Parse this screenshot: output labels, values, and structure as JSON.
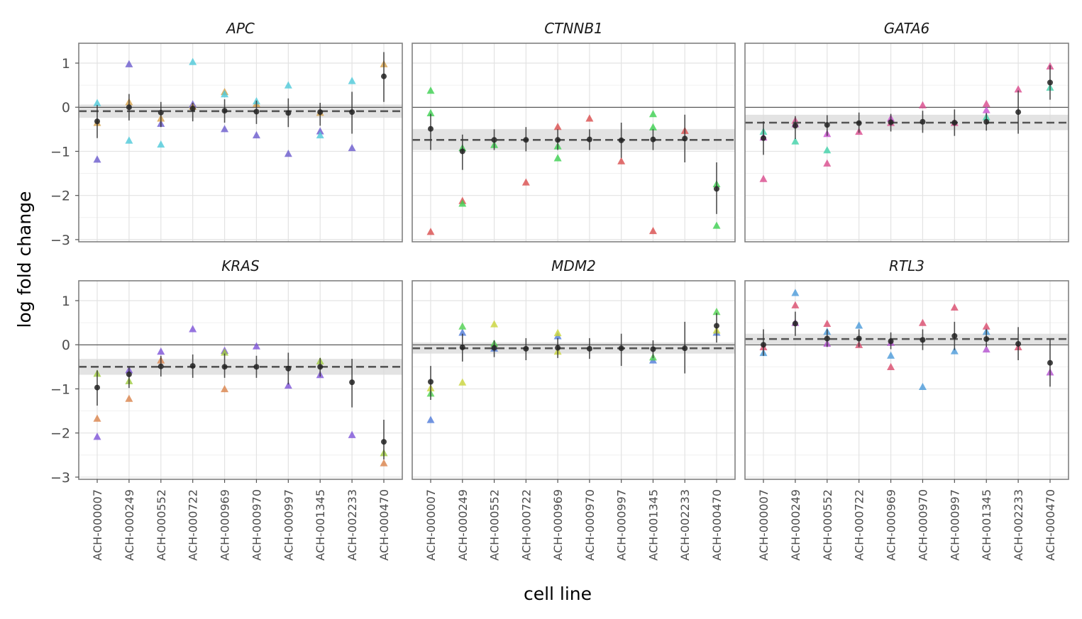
{
  "chart_data": {
    "type": "scatter",
    "xlabel": "cell line",
    "ylabel": "log fold change",
    "ylim": [
      -3.05,
      1.45
    ],
    "yticks": [
      1,
      0,
      -1,
      -2,
      -3
    ],
    "yticklabels": [
      "1",
      "0",
      "−1",
      "−2",
      "−3"
    ],
    "x": [
      "ACH-000007",
      "ACH-000249",
      "ACH-000552",
      "ACH-000722",
      "ACH-000969",
      "ACH-000970",
      "ACH-000997",
      "ACH-001345",
      "ACH-002233",
      "ACH-000470"
    ],
    "grid": true,
    "facets": [
      {
        "title": "APC",
        "colors": [
          "#6a5acd",
          "#d4a04a",
          "#4ec9d9"
        ],
        "mean": -0.09,
        "band": [
          -0.24,
          0.06
        ],
        "summary": [
          {
            "y": -0.32,
            "lo": -0.7,
            "hi": 0.05
          },
          {
            "y": 0.0,
            "lo": -0.3,
            "hi": 0.3
          },
          {
            "y": -0.12,
            "lo": -0.45,
            "hi": 0.12
          },
          {
            "y": -0.03,
            "lo": -0.32,
            "hi": 0.1
          },
          {
            "y": -0.08,
            "lo": -0.35,
            "hi": 0.18
          },
          {
            "y": -0.1,
            "lo": -0.38,
            "hi": 0.15
          },
          {
            "y": -0.13,
            "lo": -0.45,
            "hi": 0.2
          },
          {
            "y": -0.11,
            "lo": -0.42,
            "hi": 0.1
          },
          {
            "y": -0.11,
            "lo": -0.6,
            "hi": 0.35
          },
          {
            "y": 0.7,
            "lo": 0.12,
            "hi": 1.25
          }
        ],
        "points": [
          {
            "x": 0,
            "y": -1.18,
            "c": 0
          },
          {
            "x": 0,
            "y": -0.35,
            "c": 1
          },
          {
            "x": 0,
            "y": 0.1,
            "c": 2
          },
          {
            "x": 1,
            "y": 0.98,
            "c": 0
          },
          {
            "x": 1,
            "y": 0.12,
            "c": 1
          },
          {
            "x": 1,
            "y": -0.75,
            "c": 2
          },
          {
            "x": 2,
            "y": -0.37,
            "c": 0
          },
          {
            "x": 2,
            "y": -0.25,
            "c": 1
          },
          {
            "x": 2,
            "y": -0.84,
            "c": 2
          },
          {
            "x": 3,
            "y": 0.07,
            "c": 0
          },
          {
            "x": 3,
            "y": 0.02,
            "c": 1
          },
          {
            "x": 3,
            "y": 1.03,
            "c": 2
          },
          {
            "x": 4,
            "y": -0.49,
            "c": 0
          },
          {
            "x": 4,
            "y": 0.35,
            "c": 1
          },
          {
            "x": 4,
            "y": 0.3,
            "c": 2
          },
          {
            "x": 5,
            "y": -0.63,
            "c": 0
          },
          {
            "x": 5,
            "y": 0.08,
            "c": 1
          },
          {
            "x": 5,
            "y": 0.14,
            "c": 2
          },
          {
            "x": 6,
            "y": -1.05,
            "c": 0
          },
          {
            "x": 6,
            "y": 0.5,
            "c": 2
          },
          {
            "x": 7,
            "y": -0.54,
            "c": 0
          },
          {
            "x": 7,
            "y": -0.12,
            "c": 1
          },
          {
            "x": 7,
            "y": -0.63,
            "c": 2
          },
          {
            "x": 8,
            "y": -0.92,
            "c": 0
          },
          {
            "x": 8,
            "y": 0.6,
            "c": 2
          },
          {
            "x": 9,
            "y": 0.98,
            "c": 1
          }
        ]
      },
      {
        "title": "CTNNB1",
        "colors": [
          "#d94c4c",
          "#3bcf4f"
        ],
        "mean": -0.74,
        "band": [
          -0.97,
          -0.5
        ],
        "summary": [
          {
            "y": -0.49,
            "lo": -0.97,
            "hi": -0.15
          },
          {
            "y": -1.0,
            "lo": -1.42,
            "hi": -0.62
          },
          {
            "y": -0.74,
            "lo": -0.97,
            "hi": -0.5
          },
          {
            "y": -0.74,
            "lo": -1.0,
            "hi": -0.45
          },
          {
            "y": -0.74,
            "lo": -0.97,
            "hi": -0.5
          },
          {
            "y": -0.73,
            "lo": -0.97,
            "hi": -0.5
          },
          {
            "y": -0.75,
            "lo": -1.15,
            "hi": -0.35
          },
          {
            "y": -0.73,
            "lo": -0.97,
            "hi": -0.5
          },
          {
            "y": -0.71,
            "lo": -1.25,
            "hi": -0.17
          },
          {
            "y": -1.85,
            "lo": -2.42,
            "hi": -1.25
          }
        ],
        "points": [
          {
            "x": 0,
            "y": -2.82,
            "c": 0
          },
          {
            "x": 0,
            "y": 0.38,
            "c": 1
          },
          {
            "x": 0,
            "y": -0.13,
            "c": 1
          },
          {
            "x": 1,
            "y": -2.12,
            "c": 0
          },
          {
            "x": 1,
            "y": -2.18,
            "c": 1
          },
          {
            "x": 1,
            "y": -0.92,
            "c": 1
          },
          {
            "x": 2,
            "y": -0.85,
            "c": 1
          },
          {
            "x": 3,
            "y": -1.7,
            "c": 0
          },
          {
            "x": 4,
            "y": -0.44,
            "c": 0
          },
          {
            "x": 4,
            "y": -0.88,
            "c": 1
          },
          {
            "x": 4,
            "y": -1.15,
            "c": 1
          },
          {
            "x": 5,
            "y": -0.25,
            "c": 0
          },
          {
            "x": 6,
            "y": -1.22,
            "c": 0
          },
          {
            "x": 7,
            "y": -2.8,
            "c": 0
          },
          {
            "x": 7,
            "y": -0.15,
            "c": 1
          },
          {
            "x": 7,
            "y": -0.45,
            "c": 1
          },
          {
            "x": 8,
            "y": -0.53,
            "c": 0
          },
          {
            "x": 9,
            "y": -1.74,
            "c": 1
          },
          {
            "x": 9,
            "y": -2.68,
            "c": 1
          }
        ]
      },
      {
        "title": "GATA6",
        "colors": [
          "#d94a8c",
          "#3ed1a8",
          "#c94fd0"
        ],
        "mean": -0.35,
        "band": [
          -0.52,
          -0.17
        ],
        "summary": [
          {
            "y": -0.7,
            "lo": -1.08,
            "hi": -0.32
          },
          {
            "y": -0.42,
            "lo": -0.72,
            "hi": -0.2
          },
          {
            "y": -0.4,
            "lo": -0.65,
            "hi": -0.18
          },
          {
            "y": -0.36,
            "lo": -0.58,
            "hi": -0.12
          },
          {
            "y": -0.34,
            "lo": -0.55,
            "hi": -0.15
          },
          {
            "y": -0.33,
            "lo": -0.58,
            "hi": -0.08
          },
          {
            "y": -0.35,
            "lo": -0.65,
            "hi": -0.05
          },
          {
            "y": -0.33,
            "lo": -0.53,
            "hi": -0.13
          },
          {
            "y": -0.11,
            "lo": -0.6,
            "hi": 0.38
          },
          {
            "y": 0.56,
            "lo": 0.17,
            "hi": 0.95
          }
        ],
        "points": [
          {
            "x": 0,
            "y": -1.62,
            "c": 0
          },
          {
            "x": 0,
            "y": -0.55,
            "c": 1
          },
          {
            "x": 0,
            "y": -0.68,
            "c": 2
          },
          {
            "x": 1,
            "y": -0.3,
            "c": 0
          },
          {
            "x": 1,
            "y": -0.77,
            "c": 1
          },
          {
            "x": 1,
            "y": -0.38,
            "c": 2
          },
          {
            "x": 2,
            "y": -1.27,
            "c": 0
          },
          {
            "x": 2,
            "y": -0.97,
            "c": 1
          },
          {
            "x": 2,
            "y": -0.6,
            "c": 2
          },
          {
            "x": 3,
            "y": -0.55,
            "c": 0
          },
          {
            "x": 4,
            "y": -0.25,
            "c": 2
          },
          {
            "x": 4,
            "y": -0.35,
            "c": 0
          },
          {
            "x": 5,
            "y": 0.05,
            "c": 0
          },
          {
            "x": 6,
            "y": -0.35,
            "c": 0
          },
          {
            "x": 7,
            "y": 0.08,
            "c": 0
          },
          {
            "x": 7,
            "y": -0.22,
            "c": 1
          },
          {
            "x": 7,
            "y": -0.06,
            "c": 2
          },
          {
            "x": 8,
            "y": 0.41,
            "c": 0
          },
          {
            "x": 9,
            "y": 0.93,
            "c": 0
          },
          {
            "x": 9,
            "y": 0.45,
            "c": 1
          }
        ]
      },
      {
        "title": "KRAS",
        "colors": [
          "#7d52d8",
          "#d9824a",
          "#9cc93c"
        ],
        "mean": -0.5,
        "band": [
          -0.68,
          -0.32
        ],
        "summary": [
          {
            "y": -0.97,
            "lo": -1.38,
            "hi": -0.58
          },
          {
            "y": -0.67,
            "lo": -0.98,
            "hi": -0.5
          },
          {
            "y": -0.49,
            "lo": -0.72,
            "hi": -0.25
          },
          {
            "y": -0.48,
            "lo": -0.75,
            "hi": -0.22
          },
          {
            "y": -0.5,
            "lo": -0.75,
            "hi": -0.2
          },
          {
            "y": -0.5,
            "lo": -0.75,
            "hi": -0.25
          },
          {
            "y": -0.54,
            "lo": -0.9,
            "hi": -0.18
          },
          {
            "y": -0.5,
            "lo": -0.72,
            "hi": -0.3
          },
          {
            "y": -0.85,
            "lo": -1.42,
            "hi": -0.32
          },
          {
            "y": -2.2,
            "lo": -2.6,
            "hi": -1.7
          }
        ],
        "points": [
          {
            "x": 0,
            "y": -2.08,
            "c": 0
          },
          {
            "x": 0,
            "y": -1.67,
            "c": 1
          },
          {
            "x": 0,
            "y": -0.65,
            "c": 2
          },
          {
            "x": 1,
            "y": -0.57,
            "c": 0
          },
          {
            "x": 1,
            "y": -1.22,
            "c": 1
          },
          {
            "x": 1,
            "y": -0.82,
            "c": 2
          },
          {
            "x": 2,
            "y": -0.15,
            "c": 0
          },
          {
            "x": 2,
            "y": -0.35,
            "c": 1
          },
          {
            "x": 3,
            "y": 0.36,
            "c": 0
          },
          {
            "x": 4,
            "y": -0.13,
            "c": 0
          },
          {
            "x": 4,
            "y": -1.0,
            "c": 1
          },
          {
            "x": 4,
            "y": -0.17,
            "c": 2
          },
          {
            "x": 5,
            "y": -0.03,
            "c": 0
          },
          {
            "x": 6,
            "y": -0.92,
            "c": 0
          },
          {
            "x": 7,
            "y": -0.68,
            "c": 0
          },
          {
            "x": 7,
            "y": -0.37,
            "c": 2
          },
          {
            "x": 8,
            "y": -2.04,
            "c": 0
          },
          {
            "x": 9,
            "y": -2.68,
            "c": 1
          },
          {
            "x": 9,
            "y": -2.45,
            "c": 2
          }
        ]
      },
      {
        "title": "MDM2",
        "colors": [
          "#4f7bd9",
          "#4fd14f",
          "#c9d43a"
        ],
        "mean": -0.08,
        "band": [
          -0.2,
          0.05
        ],
        "summary": [
          {
            "y": -0.84,
            "lo": -1.25,
            "hi": -0.48
          },
          {
            "y": -0.06,
            "lo": -0.38,
            "hi": 0.25
          },
          {
            "y": -0.07,
            "lo": -0.28,
            "hi": 0.1
          },
          {
            "y": -0.09,
            "lo": -0.35,
            "hi": 0.15
          },
          {
            "y": -0.07,
            "lo": -0.3,
            "hi": 0.15
          },
          {
            "y": -0.09,
            "lo": -0.32,
            "hi": 0.15
          },
          {
            "y": -0.08,
            "lo": -0.48,
            "hi": 0.25
          },
          {
            "y": -0.1,
            "lo": -0.3,
            "hi": 0.1
          },
          {
            "y": -0.08,
            "lo": -0.65,
            "hi": 0.52
          },
          {
            "y": 0.43,
            "lo": 0.05,
            "hi": 0.72
          }
        ],
        "points": [
          {
            "x": 0,
            "y": -1.7,
            "c": 0
          },
          {
            "x": 0,
            "y": -1.1,
            "c": 1
          },
          {
            "x": 0,
            "y": -0.98,
            "c": 2
          },
          {
            "x": 1,
            "y": 0.28,
            "c": 0
          },
          {
            "x": 1,
            "y": 0.42,
            "c": 1
          },
          {
            "x": 1,
            "y": -0.85,
            "c": 2
          },
          {
            "x": 2,
            "y": -0.08,
            "c": 0
          },
          {
            "x": 2,
            "y": 0.03,
            "c": 1
          },
          {
            "x": 2,
            "y": 0.47,
            "c": 2
          },
          {
            "x": 4,
            "y": 0.2,
            "c": 0
          },
          {
            "x": 4,
            "y": 0.27,
            "c": 2
          },
          {
            "x": 4,
            "y": -0.15,
            "c": 2
          },
          {
            "x": 7,
            "y": -0.35,
            "c": 0
          },
          {
            "x": 7,
            "y": -0.28,
            "c": 1
          },
          {
            "x": 9,
            "y": 0.28,
            "c": 0
          },
          {
            "x": 9,
            "y": 0.75,
            "c": 1
          },
          {
            "x": 9,
            "y": 0.33,
            "c": 2
          }
        ]
      },
      {
        "title": "RTL3",
        "colors": [
          "#4a9ad9",
          "#d94a6c",
          "#b34fd0"
        ],
        "mean": 0.13,
        "band": [
          0.02,
          0.25
        ],
        "summary": [
          {
            "y": 0.0,
            "lo": -0.25,
            "hi": 0.35
          },
          {
            "y": 0.48,
            "lo": 0.2,
            "hi": 0.75
          },
          {
            "y": 0.14,
            "lo": -0.05,
            "hi": 0.35
          },
          {
            "y": 0.14,
            "lo": -0.05,
            "hi": 0.35
          },
          {
            "y": 0.08,
            "lo": -0.1,
            "hi": 0.28
          },
          {
            "y": 0.11,
            "lo": -0.12,
            "hi": 0.35
          },
          {
            "y": 0.2,
            "lo": -0.12,
            "hi": 0.52
          },
          {
            "y": 0.13,
            "lo": -0.05,
            "hi": 0.35
          },
          {
            "y": 0.02,
            "lo": -0.35,
            "hi": 0.4
          },
          {
            "y": -0.41,
            "lo": -0.95,
            "hi": 0.12
          }
        ],
        "points": [
          {
            "x": 0,
            "y": -0.18,
            "c": 0
          },
          {
            "x": 0,
            "y": -0.05,
            "c": 1
          },
          {
            "x": 1,
            "y": 1.18,
            "c": 0
          },
          {
            "x": 1,
            "y": 0.9,
            "c": 1
          },
          {
            "x": 1,
            "y": 0.5,
            "c": 2
          },
          {
            "x": 2,
            "y": 0.3,
            "c": 0
          },
          {
            "x": 2,
            "y": 0.48,
            "c": 1
          },
          {
            "x": 2,
            "y": 0.03,
            "c": 2
          },
          {
            "x": 3,
            "y": 0.44,
            "c": 0
          },
          {
            "x": 3,
            "y": 0.0,
            "c": 1
          },
          {
            "x": 4,
            "y": -0.24,
            "c": 0
          },
          {
            "x": 4,
            "y": -0.5,
            "c": 1
          },
          {
            "x": 4,
            "y": 0.05,
            "c": 2
          },
          {
            "x": 5,
            "y": -0.95,
            "c": 0
          },
          {
            "x": 5,
            "y": 0.5,
            "c": 1
          },
          {
            "x": 6,
            "y": -0.14,
            "c": 0
          },
          {
            "x": 6,
            "y": 0.85,
            "c": 1
          },
          {
            "x": 7,
            "y": 0.3,
            "c": 0
          },
          {
            "x": 7,
            "y": 0.42,
            "c": 1
          },
          {
            "x": 7,
            "y": -0.1,
            "c": 2
          },
          {
            "x": 8,
            "y": -0.05,
            "c": 1
          },
          {
            "x": 9,
            "y": -0.62,
            "c": 2
          }
        ]
      }
    ]
  }
}
